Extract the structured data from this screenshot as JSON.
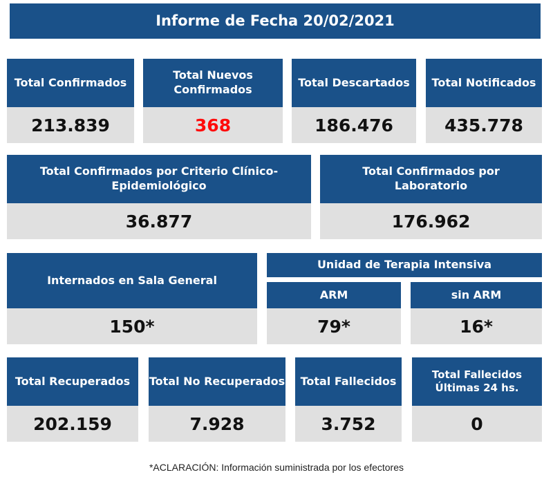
{
  "header": {
    "title": "Informe de Fecha 20/02/2021"
  },
  "row1": [
    {
      "label": "Total Confirmados",
      "value": "213.839"
    },
    {
      "label": "Total Nuevos Confirmados",
      "value": "368"
    },
    {
      "label": "Total Descartados",
      "value": "186.476"
    },
    {
      "label": "Total Notificados",
      "value": "435.778"
    }
  ],
  "row2": [
    {
      "label": "Total Confirmados por Criterio Clínico-Epidemiológico",
      "value": "36.877"
    },
    {
      "label": "Total Confirmados por Laboratorio",
      "value": "176.962"
    }
  ],
  "row3": {
    "sala_general": {
      "label": "Internados en Sala General",
      "value": "150*"
    },
    "uti": {
      "label": "Unidad de Terapia Intensiva",
      "arm": {
        "label": "ARM",
        "value": "79*"
      },
      "sin_arm": {
        "label": "sin ARM",
        "value": "16*"
      }
    }
  },
  "row4": [
    {
      "label": "Total Recuperados",
      "value": "202.159"
    },
    {
      "label": "Total No Recuperados",
      "value": "7.928"
    },
    {
      "label": "Total Fallecidos",
      "value": "3.752"
    },
    {
      "label": "Total Fallecidos Últimas 24 hs.",
      "value": "0"
    }
  ],
  "footnote": "*ACLARACIÓN: Información suministrada por los efectores",
  "colors": {
    "header_bg": "#1a5189",
    "value_bg": "#e0e0e0",
    "highlight": "#ff0b0b"
  }
}
